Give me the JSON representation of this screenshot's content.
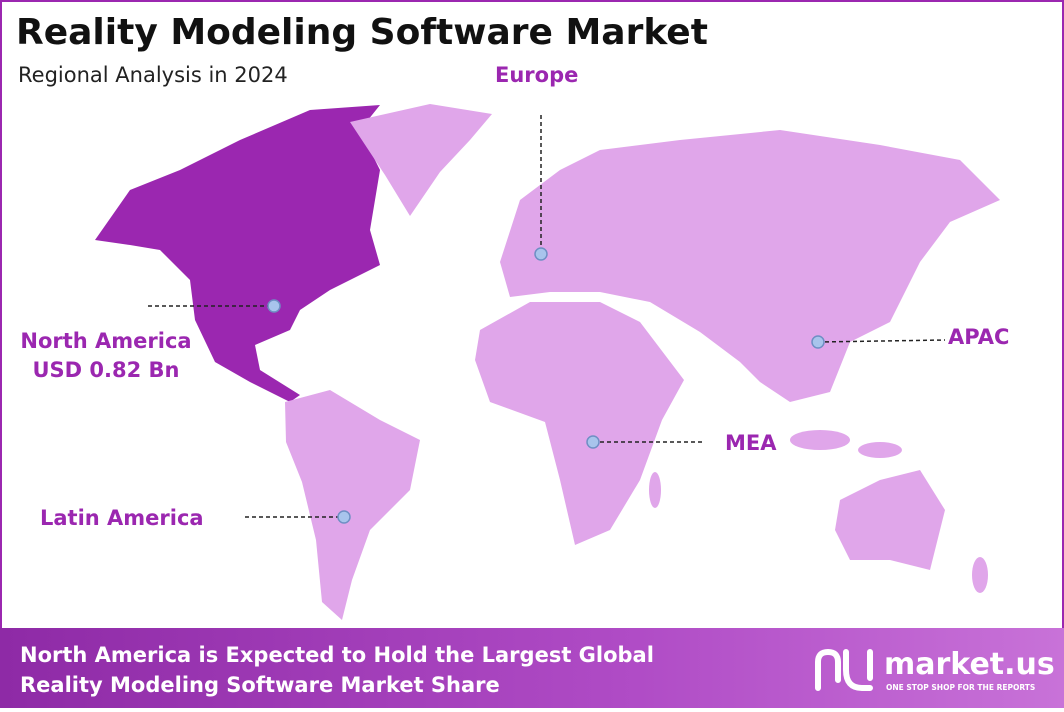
{
  "header": {
    "title": "Reality Modeling Software Market",
    "subtitle": "Regional Analysis in 2024"
  },
  "regions": [
    {
      "label": "Europe"
    },
    {
      "label": "North America",
      "value": "USD 0.82 Bn"
    },
    {
      "label": "APAC"
    },
    {
      "label": "MEA"
    },
    {
      "label": "Latin America"
    }
  ],
  "footer": {
    "lines": [
      "North America is Expected to Hold the Largest Global",
      "Reality Modeling Software Market Share"
    ]
  },
  "brand": {
    "name": "market.us",
    "tagline": "ONE STOP SHOP FOR THE REPORTS"
  }
}
